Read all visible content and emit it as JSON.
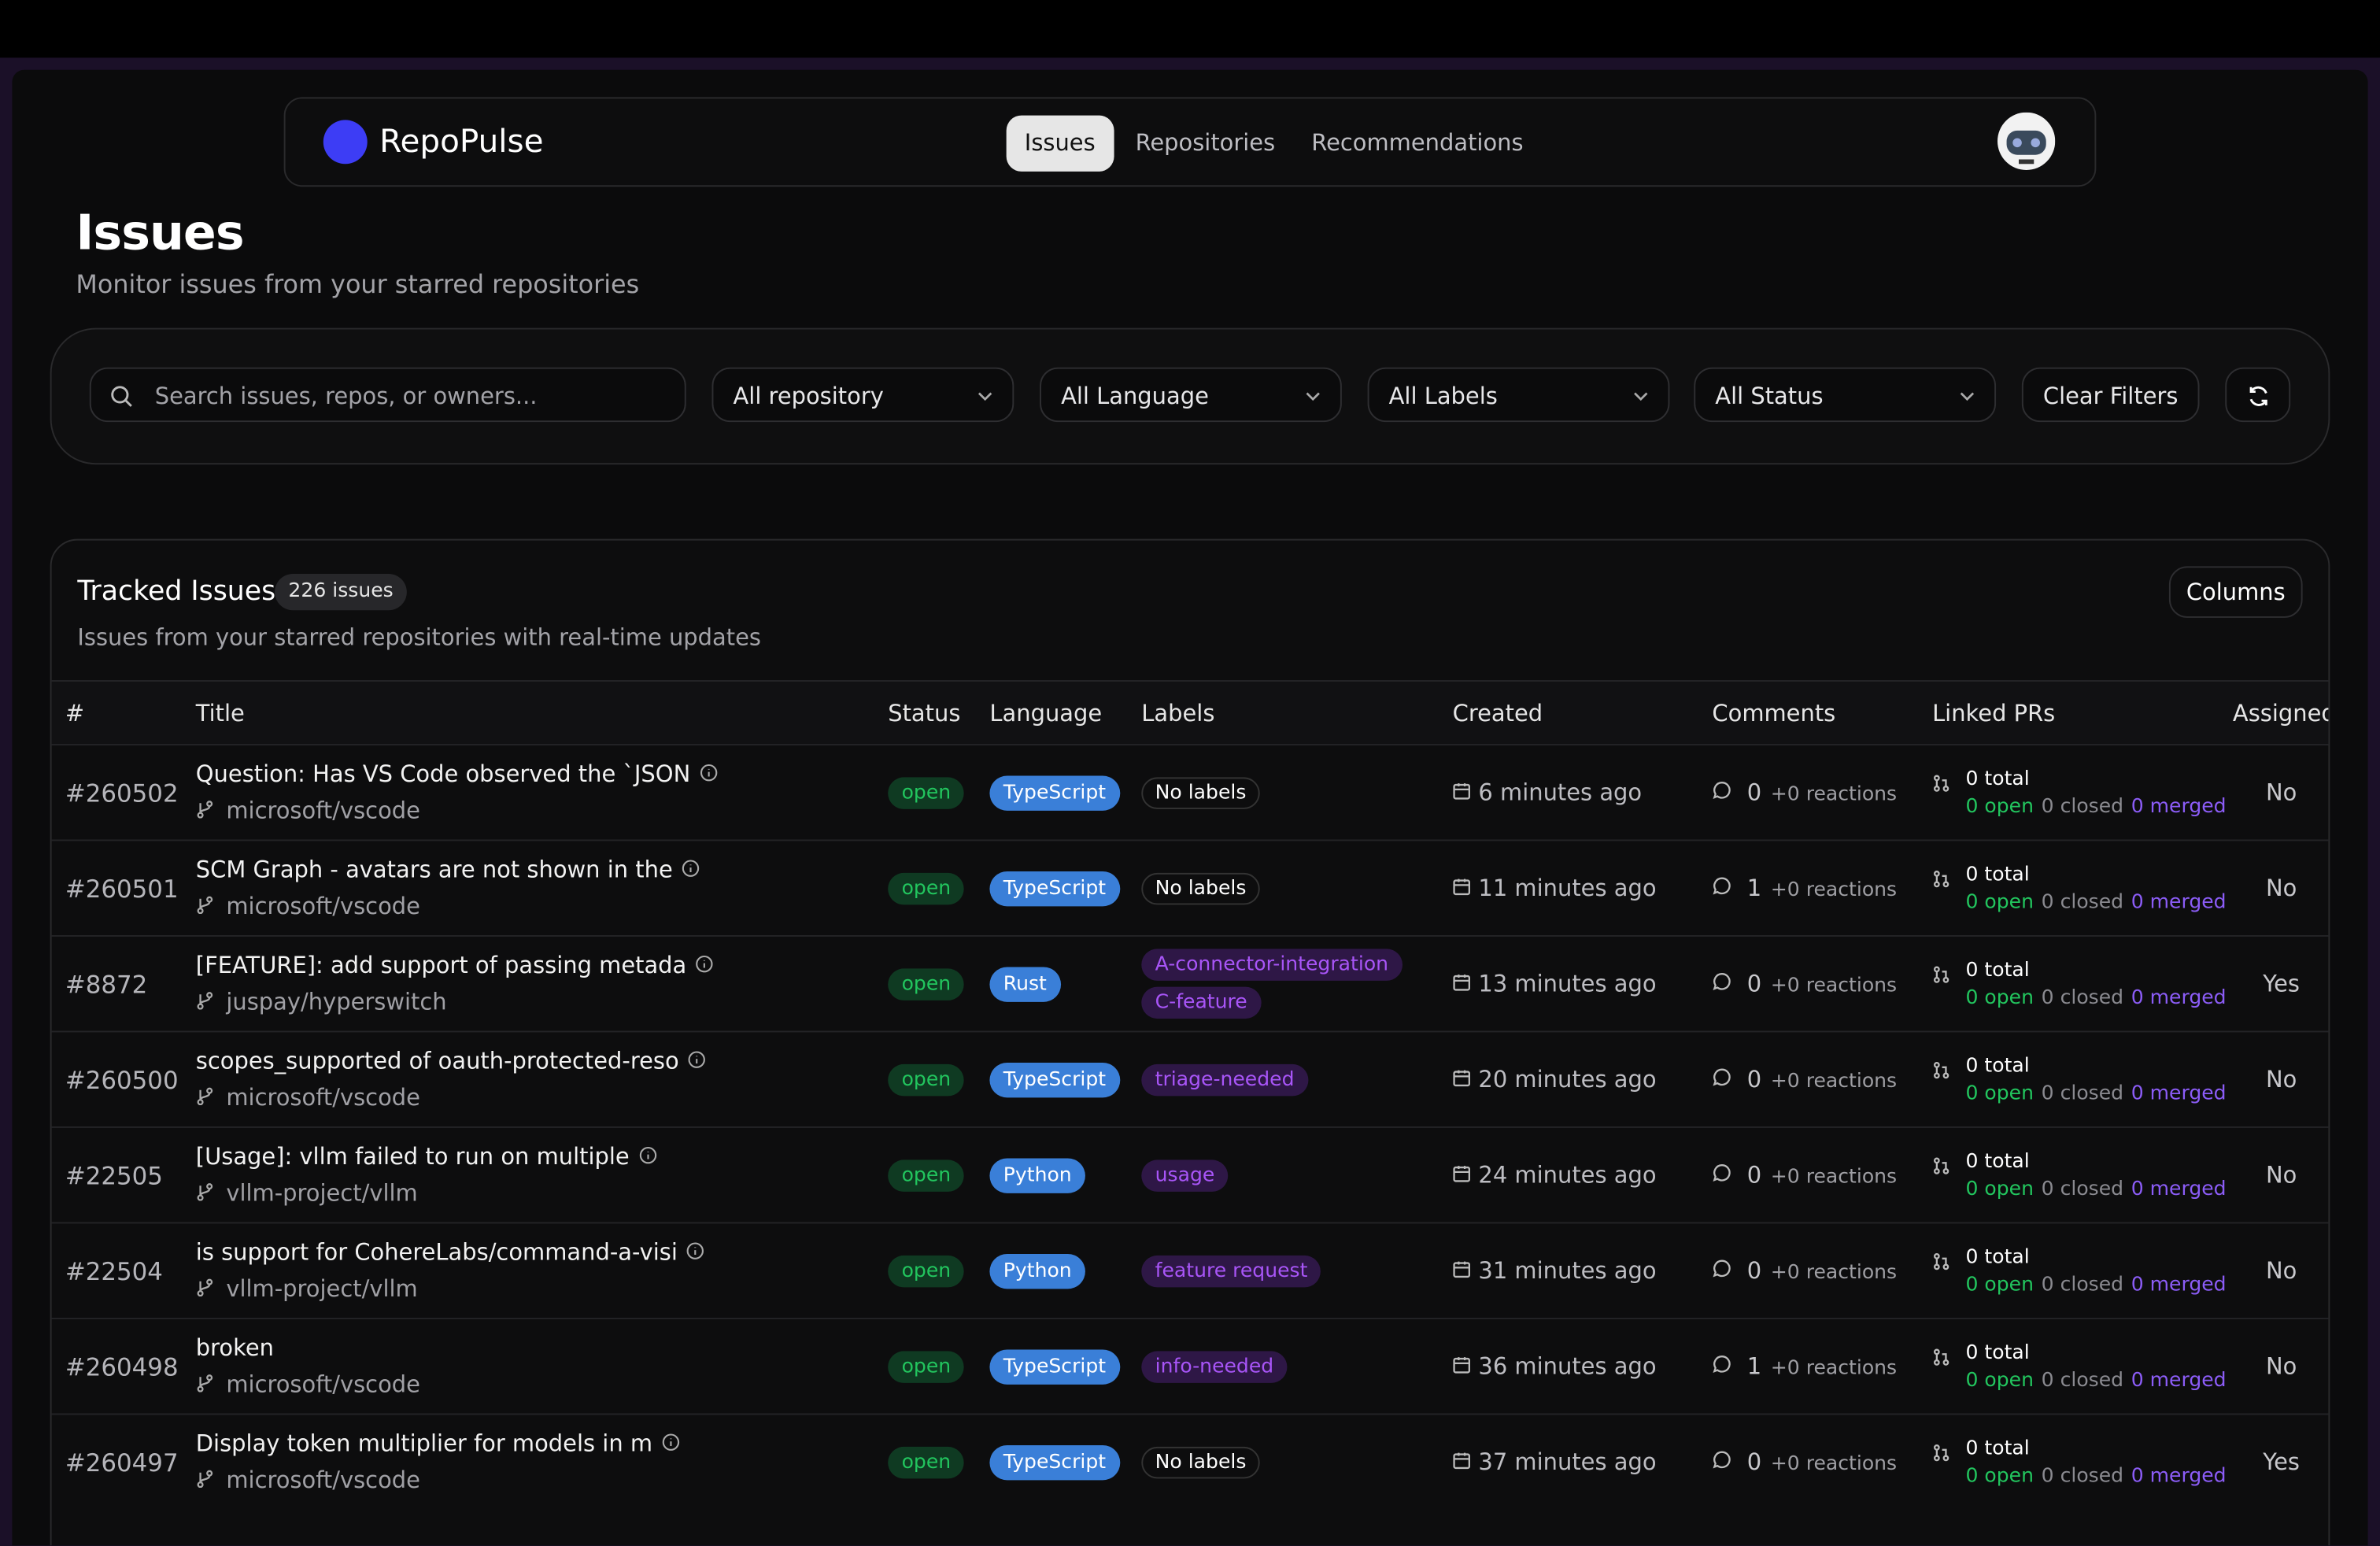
{
  "header": {
    "brand": "RepoPulse",
    "nav": [
      "Issues",
      "Repositories",
      "Recommendations"
    ]
  },
  "page": {
    "title": "Issues",
    "subtitle": "Monitor issues from your starred repositories"
  },
  "filters": {
    "search_placeholder": "Search issues, repos, or owners...",
    "selects": [
      "All repository",
      "All Language",
      "All Labels",
      "All Status"
    ],
    "clear": "Clear Filters"
  },
  "table": {
    "title": "Tracked Issues",
    "count": "226 issues",
    "description": "Issues from your starred repositories with real-time updates",
    "columns_button": "Columns",
    "headers": [
      "#",
      "Title",
      "Status",
      "Language",
      "Labels",
      "Created",
      "Comments",
      "Linked PRs",
      "Assigned"
    ],
    "rows": [
      {
        "number": "#260502",
        "title": "Question: Has VS Code observed the `JSON",
        "repo": "microsoft/vscode",
        "status": "open",
        "language": "TypeScript",
        "labels": [],
        "no_labels": "No labels",
        "created": "6 minutes ago",
        "comments": "0",
        "reactions": "+0 reactions",
        "linked_total": "0 total",
        "linked_open": "0 open",
        "linked_closed": "0 closed",
        "linked_merged": "0 merged",
        "assigned": "No"
      },
      {
        "number": "#260501",
        "title": "SCM Graph - avatars are not shown in the",
        "repo": "microsoft/vscode",
        "status": "open",
        "language": "TypeScript",
        "labels": [],
        "no_labels": "No labels",
        "created": "11 minutes ago",
        "comments": "1",
        "reactions": "+0 reactions",
        "linked_total": "0 total",
        "linked_open": "0 open",
        "linked_closed": "0 closed",
        "linked_merged": "0 merged",
        "assigned": "No"
      },
      {
        "number": "#8872",
        "title": "[FEATURE]: add support of passing metada",
        "repo": "juspay/hyperswitch",
        "status": "open",
        "language": "Rust",
        "labels": [
          "A-connector-integration",
          "C-feature"
        ],
        "created": "13 minutes ago",
        "comments": "0",
        "reactions": "+0 reactions",
        "linked_total": "0 total",
        "linked_open": "0 open",
        "linked_closed": "0 closed",
        "linked_merged": "0 merged",
        "assigned": "Yes"
      },
      {
        "number": "#260500",
        "title": "scopes_supported of oauth-protected-reso",
        "repo": "microsoft/vscode",
        "status": "open",
        "language": "TypeScript",
        "labels": [
          "triage-needed"
        ],
        "created": "20 minutes ago",
        "comments": "0",
        "reactions": "+0 reactions",
        "linked_total": "0 total",
        "linked_open": "0 open",
        "linked_closed": "0 closed",
        "linked_merged": "0 merged",
        "assigned": "No"
      },
      {
        "number": "#22505",
        "title": "[Usage]: vllm failed to run on multiple",
        "repo": "vllm-project/vllm",
        "status": "open",
        "language": "Python",
        "labels": [
          "usage"
        ],
        "created": "24 minutes ago",
        "comments": "0",
        "reactions": "+0 reactions",
        "linked_total": "0 total",
        "linked_open": "0 open",
        "linked_closed": "0 closed",
        "linked_merged": "0 merged",
        "assigned": "No"
      },
      {
        "number": "#22504",
        "title": "is support for CohereLabs/command-a-visi",
        "repo": "vllm-project/vllm",
        "status": "open",
        "language": "Python",
        "labels": [
          "feature request"
        ],
        "created": "31 minutes ago",
        "comments": "0",
        "reactions": "+0 reactions",
        "linked_total": "0 total",
        "linked_open": "0 open",
        "linked_closed": "0 closed",
        "linked_merged": "0 merged",
        "assigned": "No"
      },
      {
        "number": "#260498",
        "title": "broken",
        "repo": "microsoft/vscode",
        "status": "open",
        "language": "TypeScript",
        "labels": [
          "info-needed"
        ],
        "created": "36 minutes ago",
        "comments": "1",
        "reactions": "+0 reactions",
        "linked_total": "0 total",
        "linked_open": "0 open",
        "linked_closed": "0 closed",
        "linked_merged": "0 merged",
        "assigned": "No"
      },
      {
        "number": "#260497",
        "title": "Display token multiplier for models in m",
        "repo": "microsoft/vscode",
        "status": "open",
        "language": "TypeScript",
        "labels": [],
        "no_labels": "No labels",
        "created": "37 minutes ago",
        "comments": "0",
        "reactions": "+0 reactions",
        "linked_total": "0 total",
        "linked_open": "0 open",
        "linked_closed": "0 closed",
        "linked_merged": "0 merged",
        "assigned": "Yes"
      }
    ]
  }
}
